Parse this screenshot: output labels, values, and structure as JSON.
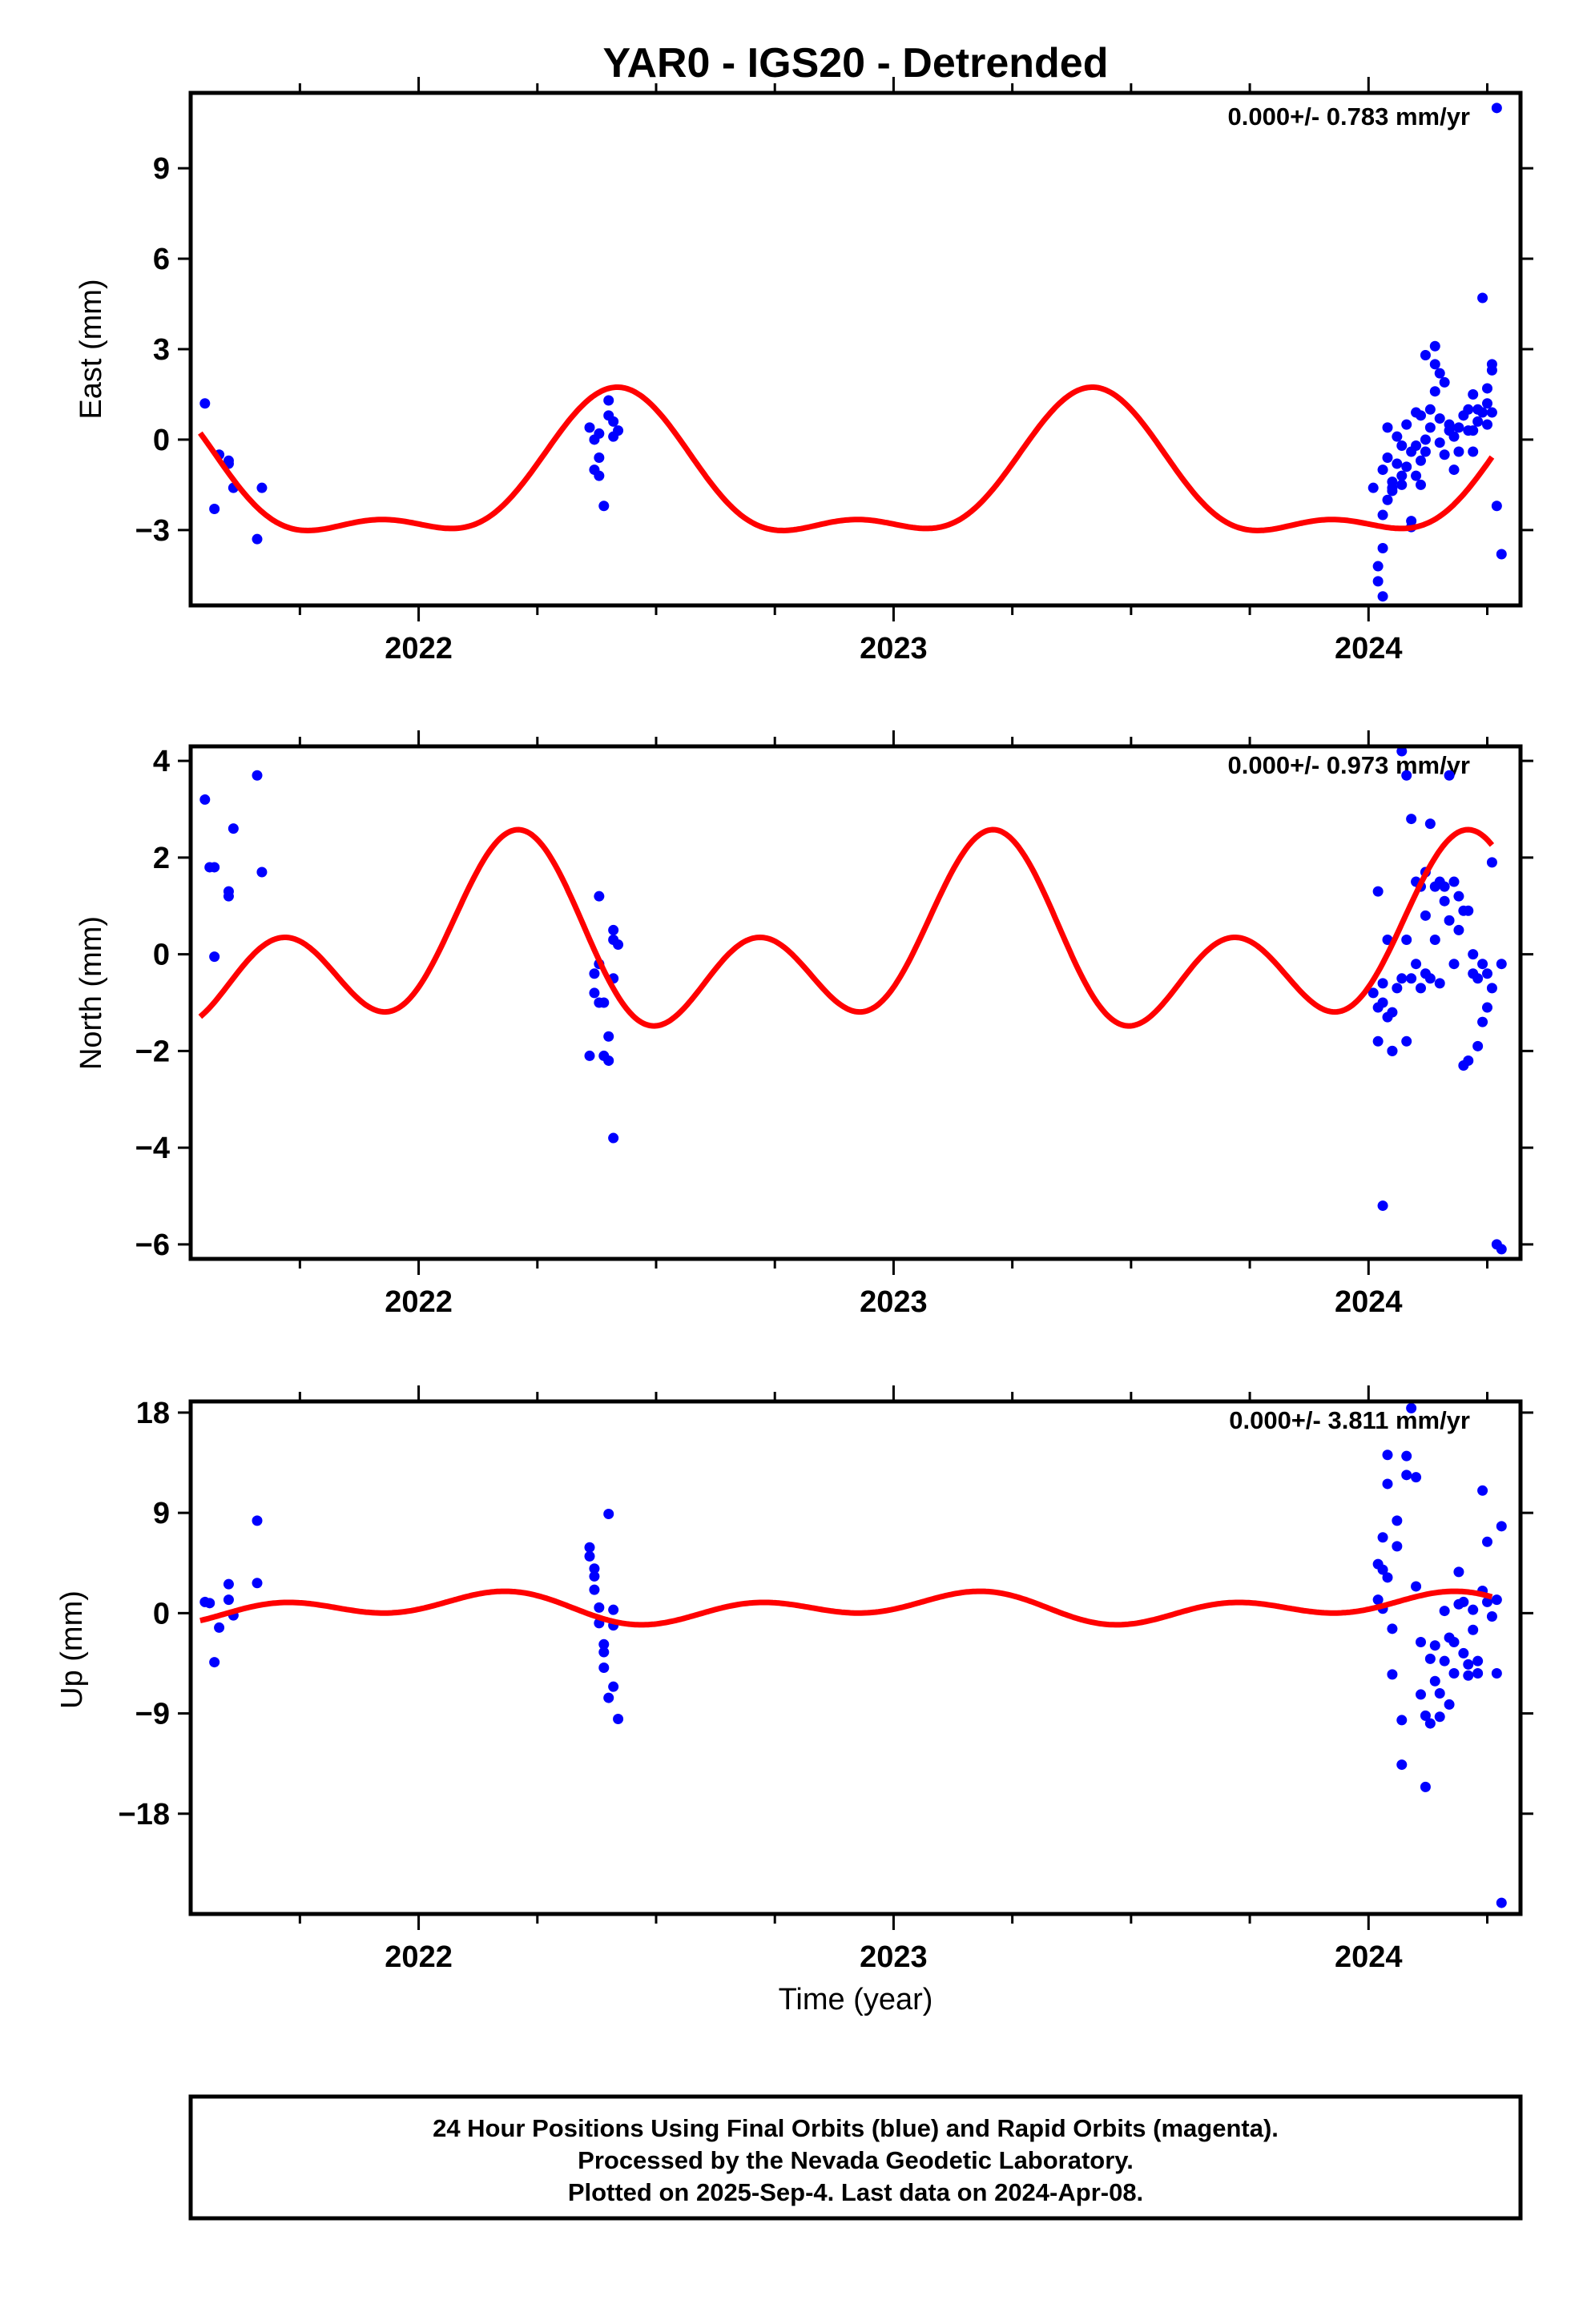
{
  "title": "YAR0 - IGS20 - Detrended",
  "x_axis_label": "Time (year)",
  "footer": {
    "line1": "24 Hour Positions Using Final Orbits (blue) and Rapid Orbits (magenta).",
    "line2": "Processed by the Nevada Geodetic Laboratory.",
    "line3": "Plotted on 2025-Sep-4. Last data on 2024-Apr-08."
  },
  "colors": {
    "points": "#0000ff",
    "fit": "#ff0000",
    "frame": "#000000"
  },
  "chart_data": [
    {
      "type": "scatter",
      "ylabel": "East (mm)",
      "rate": "0.000+/- 0.783 mm/yr",
      "xlim": [
        2021.52,
        2024.32
      ],
      "ylim": [
        -5.5,
        11.5
      ],
      "yticks": [
        -3,
        0,
        3,
        6,
        9
      ],
      "xticks": [
        2022,
        2023,
        2024
      ],
      "grid": false,
      "model": {
        "mean": -1.4,
        "s1": 1.1,
        "c1": -1.9,
        "s2": -0.8,
        "c2": 0.5
      },
      "points": [
        [
          2021.55,
          1.2
        ],
        [
          2021.57,
          -2.3
        ],
        [
          2021.58,
          -0.5
        ],
        [
          2021.6,
          -0.8
        ],
        [
          2021.6,
          -0.7
        ],
        [
          2021.61,
          -1.6
        ],
        [
          2021.66,
          -3.3
        ],
        [
          2021.67,
          -1.6
        ],
        [
          2022.36,
          0.4
        ],
        [
          2022.37,
          0.0
        ],
        [
          2022.37,
          -1.0
        ],
        [
          2022.38,
          -1.2
        ],
        [
          2022.38,
          0.2
        ],
        [
          2022.38,
          -0.6
        ],
        [
          2022.39,
          -2.2
        ],
        [
          2022.4,
          1.3
        ],
        [
          2022.4,
          0.8
        ],
        [
          2022.41,
          0.1
        ],
        [
          2022.41,
          0.6
        ],
        [
          2022.42,
          0.3
        ],
        [
          2024.01,
          -1.6
        ],
        [
          2024.02,
          -4.2
        ],
        [
          2024.02,
          -4.7
        ],
        [
          2024.03,
          -5.2
        ],
        [
          2024.03,
          -3.6
        ],
        [
          2024.03,
          -2.5
        ],
        [
          2024.03,
          -1.0
        ],
        [
          2024.04,
          -2.0
        ],
        [
          2024.04,
          -0.6
        ],
        [
          2024.04,
          0.4
        ],
        [
          2024.05,
          -1.4
        ],
        [
          2024.05,
          -1.7
        ],
        [
          2024.05,
          -1.6
        ],
        [
          2024.06,
          -0.8
        ],
        [
          2024.06,
          0.1
        ],
        [
          2024.07,
          -1.2
        ],
        [
          2024.07,
          -1.5
        ],
        [
          2024.07,
          -0.2
        ],
        [
          2024.08,
          -0.9
        ],
        [
          2024.08,
          0.5
        ],
        [
          2024.09,
          -0.4
        ],
        [
          2024.09,
          -2.7
        ],
        [
          2024.09,
          -2.9
        ],
        [
          2024.1,
          -0.2
        ],
        [
          2024.1,
          0.9
        ],
        [
          2024.1,
          -1.2
        ],
        [
          2024.11,
          -1.5
        ],
        [
          2024.11,
          -0.7
        ],
        [
          2024.11,
          0.8
        ],
        [
          2024.12,
          2.8
        ],
        [
          2024.12,
          0.0
        ],
        [
          2024.12,
          -0.4
        ],
        [
          2024.13,
          0.4
        ],
        [
          2024.13,
          1.0
        ],
        [
          2024.14,
          2.5
        ],
        [
          2024.14,
          3.1
        ],
        [
          2024.14,
          1.6
        ],
        [
          2024.15,
          0.7
        ],
        [
          2024.15,
          -0.1
        ],
        [
          2024.15,
          2.2
        ],
        [
          2024.16,
          1.9
        ],
        [
          2024.16,
          -0.5
        ],
        [
          2024.17,
          0.5
        ],
        [
          2024.17,
          0.3
        ],
        [
          2024.18,
          -1.0
        ],
        [
          2024.18,
          0.1
        ],
        [
          2024.19,
          -0.4
        ],
        [
          2024.19,
          0.4
        ],
        [
          2024.2,
          0.8
        ],
        [
          2024.21,
          0.3
        ],
        [
          2024.21,
          1.0
        ],
        [
          2024.22,
          1.5
        ],
        [
          2024.22,
          -0.4
        ],
        [
          2024.22,
          0.3
        ],
        [
          2024.23,
          1.0
        ],
        [
          2024.23,
          0.6
        ],
        [
          2024.24,
          4.7
        ],
        [
          2024.24,
          0.9
        ],
        [
          2024.25,
          1.7
        ],
        [
          2024.25,
          0.5
        ],
        [
          2024.25,
          1.2
        ],
        [
          2024.26,
          2.3
        ],
        [
          2024.26,
          2.5
        ],
        [
          2024.26,
          0.9
        ],
        [
          2024.27,
          -2.2
        ],
        [
          2024.27,
          11.0
        ],
        [
          2024.28,
          -3.8
        ]
      ]
    },
    {
      "type": "scatter",
      "ylabel": "North (mm)",
      "rate": "0.000+/- 0.973 mm/yr",
      "xlim": [
        2021.52,
        2024.32
      ],
      "ylim": [
        -6.3,
        4.3
      ],
      "yticks": [
        -6,
        -4,
        -2,
        0,
        2,
        4
      ],
      "xticks": [
        2022,
        2023,
        2024
      ],
      "grid": false,
      "model": {
        "mean": 0.12,
        "s1": 1.05,
        "c1": 0.4,
        "s2": 0.6,
        "c2": -1.2
      },
      "points": [
        [
          2021.55,
          3.2
        ],
        [
          2021.56,
          1.8
        ],
        [
          2021.57,
          1.8
        ],
        [
          2021.57,
          -0.05
        ],
        [
          2021.6,
          1.2
        ],
        [
          2021.6,
          1.3
        ],
        [
          2021.61,
          2.6
        ],
        [
          2021.66,
          3.7
        ],
        [
          2021.67,
          1.7
        ],
        [
          2022.36,
          -2.1
        ],
        [
          2022.37,
          -0.8
        ],
        [
          2022.37,
          -0.4
        ],
        [
          2022.38,
          1.2
        ],
        [
          2022.38,
          -0.2
        ],
        [
          2022.38,
          -1.0
        ],
        [
          2022.39,
          -2.1
        ],
        [
          2022.39,
          -1.0
        ],
        [
          2022.4,
          -2.2
        ],
        [
          2022.4,
          -1.7
        ],
        [
          2022.41,
          -0.5
        ],
        [
          2022.41,
          0.3
        ],
        [
          2022.41,
          0.5
        ],
        [
          2022.42,
          0.2
        ],
        [
          2022.41,
          -3.8
        ],
        [
          2024.01,
          -0.8
        ],
        [
          2024.02,
          1.3
        ],
        [
          2024.02,
          -1.1
        ],
        [
          2024.02,
          -1.8
        ],
        [
          2024.03,
          -5.2
        ],
        [
          2024.03,
          -0.6
        ],
        [
          2024.03,
          -1.0
        ],
        [
          2024.04,
          0.3
        ],
        [
          2024.04,
          -1.3
        ],
        [
          2024.05,
          -2.0
        ],
        [
          2024.05,
          -2.0
        ],
        [
          2024.05,
          -1.2
        ],
        [
          2024.06,
          -0.7
        ],
        [
          2024.07,
          4.2
        ],
        [
          2024.07,
          -0.5
        ],
        [
          2024.08,
          -1.8
        ],
        [
          2024.08,
          0.3
        ],
        [
          2024.08,
          3.7
        ],
        [
          2024.09,
          2.8
        ],
        [
          2024.09,
          -0.5
        ],
        [
          2024.1,
          1.5
        ],
        [
          2024.1,
          -0.2
        ],
        [
          2024.11,
          -0.7
        ],
        [
          2024.11,
          1.4
        ],
        [
          2024.12,
          1.7
        ],
        [
          2024.12,
          0.8
        ],
        [
          2024.12,
          -0.4
        ],
        [
          2024.13,
          -0.5
        ],
        [
          2024.13,
          2.7
        ],
        [
          2024.14,
          1.4
        ],
        [
          2024.14,
          0.3
        ],
        [
          2024.15,
          1.5
        ],
        [
          2024.15,
          -0.6
        ],
        [
          2024.16,
          1.1
        ],
        [
          2024.16,
          1.4
        ],
        [
          2024.17,
          3.7
        ],
        [
          2024.17,
          0.7
        ],
        [
          2024.18,
          1.5
        ],
        [
          2024.18,
          -0.2
        ],
        [
          2024.19,
          1.2
        ],
        [
          2024.19,
          0.5
        ],
        [
          2024.2,
          0.9
        ],
        [
          2024.2,
          -2.3
        ],
        [
          2024.21,
          -2.2
        ],
        [
          2024.21,
          0.9
        ],
        [
          2024.22,
          0.0
        ],
        [
          2024.22,
          -0.4
        ],
        [
          2024.23,
          -0.5
        ],
        [
          2024.23,
          -1.9
        ],
        [
          2024.24,
          -1.4
        ],
        [
          2024.24,
          -0.2
        ],
        [
          2024.25,
          -1.1
        ],
        [
          2024.25,
          -0.4
        ],
        [
          2024.26,
          1.9
        ],
        [
          2024.26,
          -0.7
        ],
        [
          2024.27,
          -6.0
        ],
        [
          2024.28,
          -6.1
        ],
        [
          2024.28,
          -0.2
        ]
      ]
    },
    {
      "type": "scatter",
      "ylabel": "Up (mm)",
      "rate": "0.000+/- 3.811 mm/yr",
      "xlim": [
        2021.52,
        2024.32
      ],
      "ylim": [
        -27,
        19
      ],
      "yticks": [
        -18,
        -9,
        0,
        9,
        18
      ],
      "xticks": [
        2022,
        2023,
        2024
      ],
      "grid": false,
      "model": {
        "mean": 0.47,
        "s1": 0.32,
        "c1": 0.66,
        "s2": 0.55,
        "c2": -0.78
      },
      "points": [
        [
          2021.55,
          1.0
        ],
        [
          2021.56,
          0.9
        ],
        [
          2021.57,
          -4.4
        ],
        [
          2021.58,
          -1.3
        ],
        [
          2021.6,
          2.6
        ],
        [
          2021.6,
          1.2
        ],
        [
          2021.61,
          -0.2
        ],
        [
          2021.66,
          8.3
        ],
        [
          2021.66,
          2.7
        ],
        [
          2022.36,
          5.9
        ],
        [
          2022.36,
          5.1
        ],
        [
          2022.37,
          4.0
        ],
        [
          2022.37,
          3.3
        ],
        [
          2022.37,
          2.1
        ],
        [
          2022.38,
          0.5
        ],
        [
          2022.38,
          -0.9
        ],
        [
          2022.39,
          -2.8
        ],
        [
          2022.39,
          -3.5
        ],
        [
          2022.39,
          -4.9
        ],
        [
          2022.4,
          -7.6
        ],
        [
          2022.4,
          8.9
        ],
        [
          2022.41,
          0.3
        ],
        [
          2022.41,
          -1.1
        ],
        [
          2022.41,
          -6.6
        ],
        [
          2022.42,
          -9.5
        ],
        [
          2024.02,
          4.4
        ],
        [
          2024.02,
          1.2
        ],
        [
          2024.03,
          3.9
        ],
        [
          2024.03,
          6.8
        ],
        [
          2024.03,
          0.4
        ],
        [
          2024.04,
          14.2
        ],
        [
          2024.04,
          11.6
        ],
        [
          2024.04,
          3.2
        ],
        [
          2024.05,
          -1.4
        ],
        [
          2024.05,
          -5.5
        ],
        [
          2024.06,
          8.3
        ],
        [
          2024.06,
          6.0
        ],
        [
          2024.07,
          -13.6
        ],
        [
          2024.07,
          -9.6
        ],
        [
          2024.08,
          14.1
        ],
        [
          2024.08,
          12.4
        ],
        [
          2024.09,
          18.4
        ],
        [
          2024.1,
          12.2
        ],
        [
          2024.1,
          2.4
        ],
        [
          2024.11,
          -2.6
        ],
        [
          2024.11,
          -7.3
        ],
        [
          2024.12,
          -15.6
        ],
        [
          2024.12,
          -9.2
        ],
        [
          2024.13,
          -4.1
        ],
        [
          2024.13,
          -9.9
        ],
        [
          2024.14,
          -6.1
        ],
        [
          2024.14,
          -2.9
        ],
        [
          2024.15,
          -7.2
        ],
        [
          2024.15,
          -9.3
        ],
        [
          2024.16,
          -4.3
        ],
        [
          2024.16,
          0.2
        ],
        [
          2024.17,
          -8.2
        ],
        [
          2024.17,
          -2.2
        ],
        [
          2024.18,
          -5.4
        ],
        [
          2024.18,
          -2.6
        ],
        [
          2024.19,
          3.7
        ],
        [
          2024.19,
          0.8
        ],
        [
          2024.2,
          -3.6
        ],
        [
          2024.2,
          1.0
        ],
        [
          2024.21,
          -4.6
        ],
        [
          2024.21,
          -5.6
        ],
        [
          2024.22,
          0.3
        ],
        [
          2024.22,
          -1.5
        ],
        [
          2024.23,
          -4.3
        ],
        [
          2024.23,
          -5.4
        ],
        [
          2024.24,
          11.0
        ],
        [
          2024.24,
          2.0
        ],
        [
          2024.25,
          6.4
        ],
        [
          2024.25,
          1.0
        ],
        [
          2024.26,
          -0.3
        ],
        [
          2024.27,
          -5.4
        ],
        [
          2024.27,
          1.2
        ],
        [
          2024.28,
          7.8
        ],
        [
          2024.28,
          -26.0
        ]
      ]
    }
  ]
}
